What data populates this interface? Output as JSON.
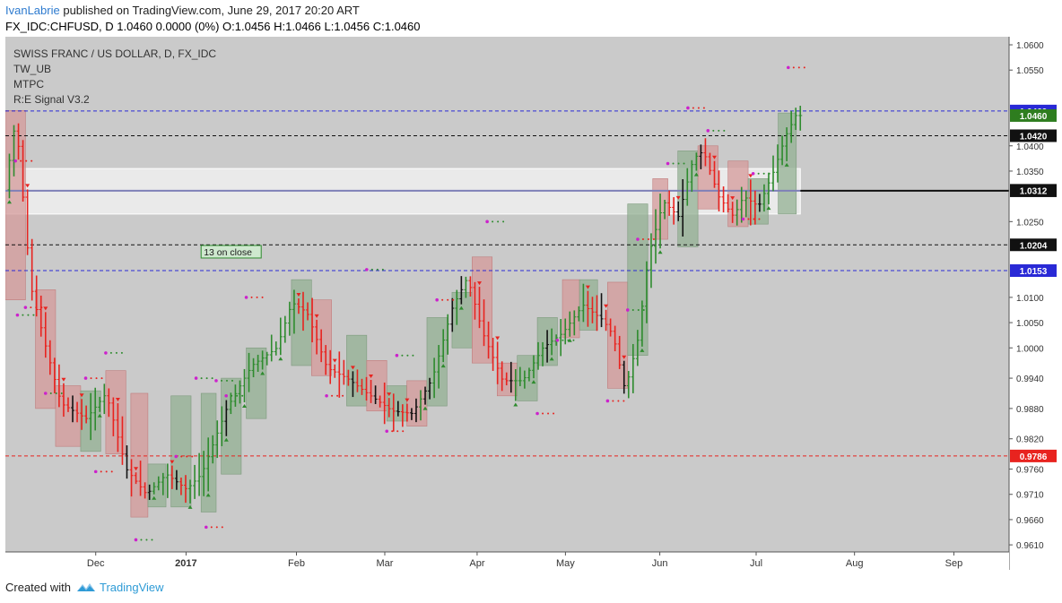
{
  "header": {
    "author": "IvanLabrie",
    "published": "published on TradingView.com, June 29, 2017 20:20 ART",
    "symbol_line": "FX_IDC:CHFUSD, D  1.0460 0.0000 (0%) O:1.0456 H:1.0466 L:1.0456 C:1.0460"
  },
  "legend": {
    "title": "SWISS FRANC / US DOLLAR, D, FX_IDC",
    "indicators": [
      "TW_UB",
      "MTPC",
      "R:E Signal V3.2"
    ]
  },
  "footer": {
    "created": "Created with",
    "brand": "TradingView"
  },
  "colors": {
    "background": "#cacaca",
    "bull": "#2e8b2e",
    "bear": "#e8231f",
    "bull_box": "#93b093",
    "bear_box": "#d49a9a",
    "dots": "#cc22cc",
    "hline_blue": "#2929d6",
    "hline_black": "#111111",
    "hline_red": "#e8231f"
  },
  "chart_data": {
    "type": "candlestick",
    "y_ticks": [
      0.961,
      0.966,
      0.971,
      0.976,
      0.982,
      0.988,
      0.994,
      1.0,
      1.005,
      1.01,
      1.025,
      1.035,
      1.04,
      1.055,
      1.06
    ],
    "y_tick_labels": [
      "0.9610",
      "0.9660",
      "0.9710",
      "0.9760",
      "0.9820",
      "0.9880",
      "0.9940",
      "1.0000",
      "1.0050",
      "1.0100",
      "1.0250",
      "1.0350",
      "1.0400",
      "1.0550",
      "1.0600"
    ],
    "x_ticks": [
      {
        "label": "Dec",
        "pos": 0.09
      },
      {
        "label": "2017",
        "pos": 0.18
      },
      {
        "label": "Feb",
        "pos": 0.29
      },
      {
        "label": "Mar",
        "pos": 0.378
      },
      {
        "label": "Apr",
        "pos": 0.47
      },
      {
        "label": "May",
        "pos": 0.558
      },
      {
        "label": "Jun",
        "pos": 0.652
      },
      {
        "label": "Jul",
        "pos": 0.748
      },
      {
        "label": "Aug",
        "pos": 0.846
      },
      {
        "label": "Sep",
        "pos": 0.945
      }
    ],
    "hlines": [
      {
        "value": 1.0469,
        "label": "1.0469",
        "style": "blue"
      },
      {
        "value": 1.042,
        "label": "1.0420",
        "style": "black"
      },
      {
        "value": 1.0311,
        "label": "1.0311",
        "style": "navy"
      },
      {
        "value": 1.0204,
        "label": "1.0204",
        "style": "black"
      },
      {
        "value": 1.0153,
        "label": "1.0153",
        "style": "blue"
      },
      {
        "value": 0.9786,
        "label": "0.9786",
        "style": "red"
      }
    ],
    "price_tags": [
      {
        "value": 1.046,
        "label": "1.0460",
        "color": "#2e7d1f"
      },
      {
        "value": 1.0312,
        "label": "1.0312",
        "color": "#111111"
      }
    ],
    "zone": {
      "top": 1.0355,
      "bottom": 1.0265
    },
    "annotation": {
      "text": "13 on close",
      "pos": 0.195,
      "value": 1.0185
    },
    "anchors": [
      {
        "pos": 0.003,
        "price": 1.03
      },
      {
        "pos": 0.015,
        "price": 1.0455
      },
      {
        "pos": 0.03,
        "price": 1.012
      },
      {
        "pos": 0.045,
        "price": 1.0
      },
      {
        "pos": 0.06,
        "price": 0.989
      },
      {
        "pos": 0.085,
        "price": 0.986
      },
      {
        "pos": 0.105,
        "price": 0.991
      },
      {
        "pos": 0.125,
        "price": 0.976
      },
      {
        "pos": 0.145,
        "price": 0.971
      },
      {
        "pos": 0.165,
        "price": 0.975
      },
      {
        "pos": 0.185,
        "price": 0.972
      },
      {
        "pos": 0.2,
        "price": 0.975
      },
      {
        "pos": 0.225,
        "price": 0.988
      },
      {
        "pos": 0.25,
        "price": 0.9965
      },
      {
        "pos": 0.275,
        "price": 1.0
      },
      {
        "pos": 0.29,
        "price": 1.009
      },
      {
        "pos": 0.305,
        "price": 1.007
      },
      {
        "pos": 0.325,
        "price": 0.996
      },
      {
        "pos": 0.345,
        "price": 0.994
      },
      {
        "pos": 0.365,
        "price": 0.991
      },
      {
        "pos": 0.39,
        "price": 0.9875
      },
      {
        "pos": 0.41,
        "price": 0.987
      },
      {
        "pos": 0.43,
        "price": 0.994
      },
      {
        "pos": 0.45,
        "price": 1.008
      },
      {
        "pos": 0.465,
        "price": 1.014
      },
      {
        "pos": 0.48,
        "price": 1.003
      },
      {
        "pos": 0.5,
        "price": 0.9935
      },
      {
        "pos": 0.52,
        "price": 0.9935
      },
      {
        "pos": 0.54,
        "price": 1.0
      },
      {
        "pos": 0.56,
        "price": 1.003
      },
      {
        "pos": 0.58,
        "price": 1.0085
      },
      {
        "pos": 0.6,
        "price": 1.0055
      },
      {
        "pos": 0.61,
        "price": 1.0025
      },
      {
        "pos": 0.622,
        "price": 0.9915
      },
      {
        "pos": 0.635,
        "price": 1.002
      },
      {
        "pos": 0.645,
        "price": 1.018
      },
      {
        "pos": 0.66,
        "price": 1.029
      },
      {
        "pos": 0.675,
        "price": 1.026
      },
      {
        "pos": 0.69,
        "price": 1.0375
      },
      {
        "pos": 0.7,
        "price": 1.039
      },
      {
        "pos": 0.715,
        "price": 1.03
      },
      {
        "pos": 0.73,
        "price": 1.026
      },
      {
        "pos": 0.74,
        "price": 1.03
      },
      {
        "pos": 0.755,
        "price": 1.028
      },
      {
        "pos": 0.77,
        "price": 1.035
      },
      {
        "pos": 0.782,
        "price": 1.042
      },
      {
        "pos": 0.792,
        "price": 1.046
      }
    ],
    "boxes": [
      {
        "p0": 0.0,
        "p1": 0.02,
        "hi": 1.047,
        "lo": 1.0095,
        "kind": "bear"
      },
      {
        "p0": 0.03,
        "p1": 0.05,
        "hi": 1.0115,
        "lo": 0.988,
        "kind": "bear"
      },
      {
        "p0": 0.05,
        "p1": 0.075,
        "hi": 0.9925,
        "lo": 0.9805,
        "kind": "bear"
      },
      {
        "p0": 0.075,
        "p1": 0.095,
        "hi": 0.9915,
        "lo": 0.9795,
        "kind": "bull"
      },
      {
        "p0": 0.1,
        "p1": 0.12,
        "hi": 0.9955,
        "lo": 0.979,
        "kind": "bear"
      },
      {
        "p0": 0.125,
        "p1": 0.142,
        "hi": 0.991,
        "lo": 0.9665,
        "kind": "bear"
      },
      {
        "p0": 0.142,
        "p1": 0.16,
        "hi": 0.977,
        "lo": 0.9685,
        "kind": "bull"
      },
      {
        "p0": 0.165,
        "p1": 0.185,
        "hi": 0.9905,
        "lo": 0.9685,
        "kind": "bull"
      },
      {
        "p0": 0.195,
        "p1": 0.21,
        "hi": 0.991,
        "lo": 0.9675,
        "kind": "bull"
      },
      {
        "p0": 0.215,
        "p1": 0.235,
        "hi": 0.994,
        "lo": 0.975,
        "kind": "bull"
      },
      {
        "p0": 0.24,
        "p1": 0.26,
        "hi": 1.0,
        "lo": 0.986,
        "kind": "bull"
      },
      {
        "p0": 0.285,
        "p1": 0.305,
        "hi": 1.0135,
        "lo": 0.9965,
        "kind": "bull"
      },
      {
        "p0": 0.305,
        "p1": 0.325,
        "hi": 1.0095,
        "lo": 0.9945,
        "kind": "bear"
      },
      {
        "p0": 0.34,
        "p1": 0.36,
        "hi": 1.0025,
        "lo": 0.9885,
        "kind": "bull"
      },
      {
        "p0": 0.36,
        "p1": 0.38,
        "hi": 0.9975,
        "lo": 0.9875,
        "kind": "bear"
      },
      {
        "p0": 0.38,
        "p1": 0.4,
        "hi": 0.9925,
        "lo": 0.9855,
        "kind": "bull"
      },
      {
        "p0": 0.4,
        "p1": 0.42,
        "hi": 0.9935,
        "lo": 0.9845,
        "kind": "bear"
      },
      {
        "p0": 0.42,
        "p1": 0.44,
        "hi": 1.006,
        "lo": 0.9885,
        "kind": "bull"
      },
      {
        "p0": 0.445,
        "p1": 0.465,
        "hi": 1.011,
        "lo": 1.0,
        "kind": "bull"
      },
      {
        "p0": 0.465,
        "p1": 0.485,
        "hi": 1.018,
        "lo": 0.997,
        "kind": "bear"
      },
      {
        "p0": 0.49,
        "p1": 0.51,
        "hi": 0.997,
        "lo": 0.9905,
        "kind": "bear"
      },
      {
        "p0": 0.51,
        "p1": 0.53,
        "hi": 0.9985,
        "lo": 0.9895,
        "kind": "bull"
      },
      {
        "p0": 0.53,
        "p1": 0.55,
        "hi": 1.006,
        "lo": 0.9965,
        "kind": "bull"
      },
      {
        "p0": 0.555,
        "p1": 0.572,
        "hi": 1.0135,
        "lo": 1.002,
        "kind": "bear"
      },
      {
        "p0": 0.572,
        "p1": 0.59,
        "hi": 1.0135,
        "lo": 1.0035,
        "kind": "bull"
      },
      {
        "p0": 0.6,
        "p1": 0.62,
        "hi": 1.013,
        "lo": 0.992,
        "kind": "bear"
      },
      {
        "p0": 0.62,
        "p1": 0.64,
        "hi": 1.0285,
        "lo": 0.9985,
        "kind": "bull"
      },
      {
        "p0": 0.645,
        "p1": 0.66,
        "hi": 1.0335,
        "lo": 1.0215,
        "kind": "bear"
      },
      {
        "p0": 0.67,
        "p1": 0.69,
        "hi": 1.039,
        "lo": 1.02,
        "kind": "bull"
      },
      {
        "p0": 0.69,
        "p1": 0.71,
        "hi": 1.04,
        "lo": 1.0275,
        "kind": "bear"
      },
      {
        "p0": 0.72,
        "p1": 0.74,
        "hi": 1.037,
        "lo": 1.024,
        "kind": "bear"
      },
      {
        "p0": 0.74,
        "p1": 0.76,
        "hi": 1.0335,
        "lo": 1.0245,
        "kind": "bull"
      },
      {
        "p0": 0.77,
        "p1": 0.788,
        "hi": 1.0465,
        "lo": 1.0265,
        "kind": "bull"
      }
    ],
    "dots": [
      {
        "pos": 0.01,
        "value": 1.037
      },
      {
        "pos": 0.012,
        "value": 1.0065
      },
      {
        "pos": 0.02,
        "value": 1.008
      },
      {
        "pos": 0.04,
        "value": 0.991
      },
      {
        "pos": 0.08,
        "value": 0.994
      },
      {
        "pos": 0.1,
        "value": 0.999
      },
      {
        "pos": 0.09,
        "value": 0.9755
      },
      {
        "pos": 0.13,
        "value": 0.962
      },
      {
        "pos": 0.17,
        "value": 0.9785
      },
      {
        "pos": 0.19,
        "value": 0.994
      },
      {
        "pos": 0.2,
        "value": 0.9645
      },
      {
        "pos": 0.21,
        "value": 0.9935
      },
      {
        "pos": 0.24,
        "value": 1.01
      },
      {
        "pos": 0.22,
        "value": 0.9905
      },
      {
        "pos": 0.32,
        "value": 0.9905
      },
      {
        "pos": 0.36,
        "value": 1.0155
      },
      {
        "pos": 0.38,
        "value": 0.9835
      },
      {
        "pos": 0.39,
        "value": 0.9985
      },
      {
        "pos": 0.43,
        "value": 1.0095
      },
      {
        "pos": 0.48,
        "value": 1.025
      },
      {
        "pos": 0.53,
        "value": 0.987
      },
      {
        "pos": 0.55,
        "value": 1.0015
      },
      {
        "pos": 0.6,
        "value": 0.9895
      },
      {
        "pos": 0.62,
        "value": 1.0075
      },
      {
        "pos": 0.63,
        "value": 1.0215
      },
      {
        "pos": 0.66,
        "value": 1.0365
      },
      {
        "pos": 0.68,
        "value": 1.0475
      },
      {
        "pos": 0.7,
        "value": 1.043
      },
      {
        "pos": 0.735,
        "value": 1.0255
      },
      {
        "pos": 0.745,
        "value": 1.0345
      },
      {
        "pos": 0.78,
        "value": 1.0555
      }
    ]
  }
}
